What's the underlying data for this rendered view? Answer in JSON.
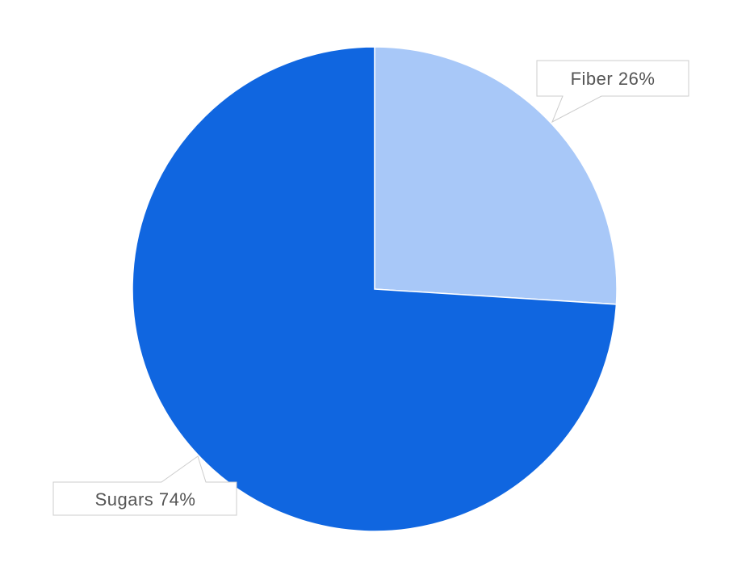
{
  "chart_data": {
    "type": "pie",
    "title": "",
    "start_angle": "top, clockwise",
    "slices": [
      {
        "label": "Fiber",
        "value": 26,
        "display": "Fiber 26%",
        "color": "#a8c8f8"
      },
      {
        "label": "Sugars",
        "value": 74,
        "display": "Sugars 74%",
        "color": "#1066e0"
      }
    ],
    "legend": "none",
    "label_style": "callout boxes"
  }
}
